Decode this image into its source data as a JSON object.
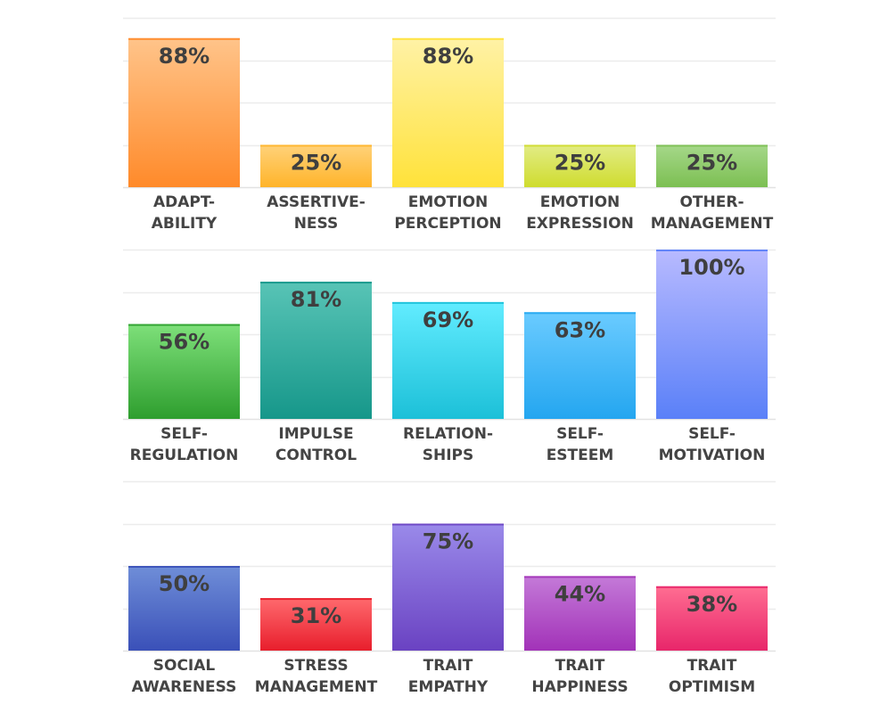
{
  "chart_data": [
    {
      "type": "bar",
      "categories": [
        [
          "ADAPT-",
          "ABILITY"
        ],
        [
          "ASSERTIVE-",
          "NESS"
        ],
        [
          "EMOTION",
          "PERCEPTION"
        ],
        [
          "EMOTION",
          "EXPRESSION"
        ],
        [
          "OTHER-",
          "MANAGEMENT"
        ]
      ],
      "values": [
        88,
        25,
        88,
        25,
        25
      ],
      "labels": [
        "88%",
        "25%",
        "88%",
        "25%",
        "25%"
      ],
      "ylim": [
        0,
        100
      ],
      "grid": true,
      "colors": [
        [
          "#ffc48a",
          "#ff8a2a"
        ],
        [
          "#ffd27a",
          "#ffb42a"
        ],
        [
          "#fff2a6",
          "#ffe23a"
        ],
        [
          "#e2ec86",
          "#cfdc2e"
        ],
        [
          "#a6d88a",
          "#7cbf52"
        ]
      ]
    },
    {
      "type": "bar",
      "categories": [
        [
          "SELF-",
          "REGULATION"
        ],
        [
          "IMPULSE",
          "CONTROL"
        ],
        [
          "RELATION-",
          "SHIPS"
        ],
        [
          "SELF-",
          "ESTEEM"
        ],
        [
          "SELF-",
          "MOTIVATION"
        ]
      ],
      "values": [
        56,
        81,
        69,
        63,
        100
      ],
      "labels": [
        "56%",
        "81%",
        "69%",
        "63%",
        "100%"
      ],
      "ylim": [
        0,
        100
      ],
      "grid": true,
      "colors": [
        [
          "#7ee07a",
          "#2e9e2e"
        ],
        [
          "#58c4b6",
          "#16978a"
        ],
        [
          "#62ecff",
          "#1cc0d8"
        ],
        [
          "#6acbff",
          "#24a6f0"
        ],
        [
          "#b8baff",
          "#5a80f8"
        ]
      ]
    },
    {
      "type": "bar",
      "categories": [
        [
          "SOCIAL",
          "AWARENESS"
        ],
        [
          "STRESS",
          "MANAGEMENT"
        ],
        [
          "TRAIT",
          "EMPATHY"
        ],
        [
          "TRAIT",
          "HAPPINESS"
        ],
        [
          "TRAIT",
          "OPTIMISM"
        ]
      ],
      "values": [
        50,
        31,
        75,
        44,
        38
      ],
      "labels": [
        "50%",
        "31%",
        "75%",
        "44%",
        "38%"
      ],
      "ylim": [
        0,
        100
      ],
      "grid": true,
      "colors": [
        [
          "#6f8ed8",
          "#3a50b8"
        ],
        [
          "#ff6a6e",
          "#e81e2c"
        ],
        [
          "#9a8aea",
          "#6a42c2"
        ],
        [
          "#c47ad8",
          "#a232b8"
        ],
        [
          "#ff6e92",
          "#e8266a"
        ]
      ]
    }
  ]
}
